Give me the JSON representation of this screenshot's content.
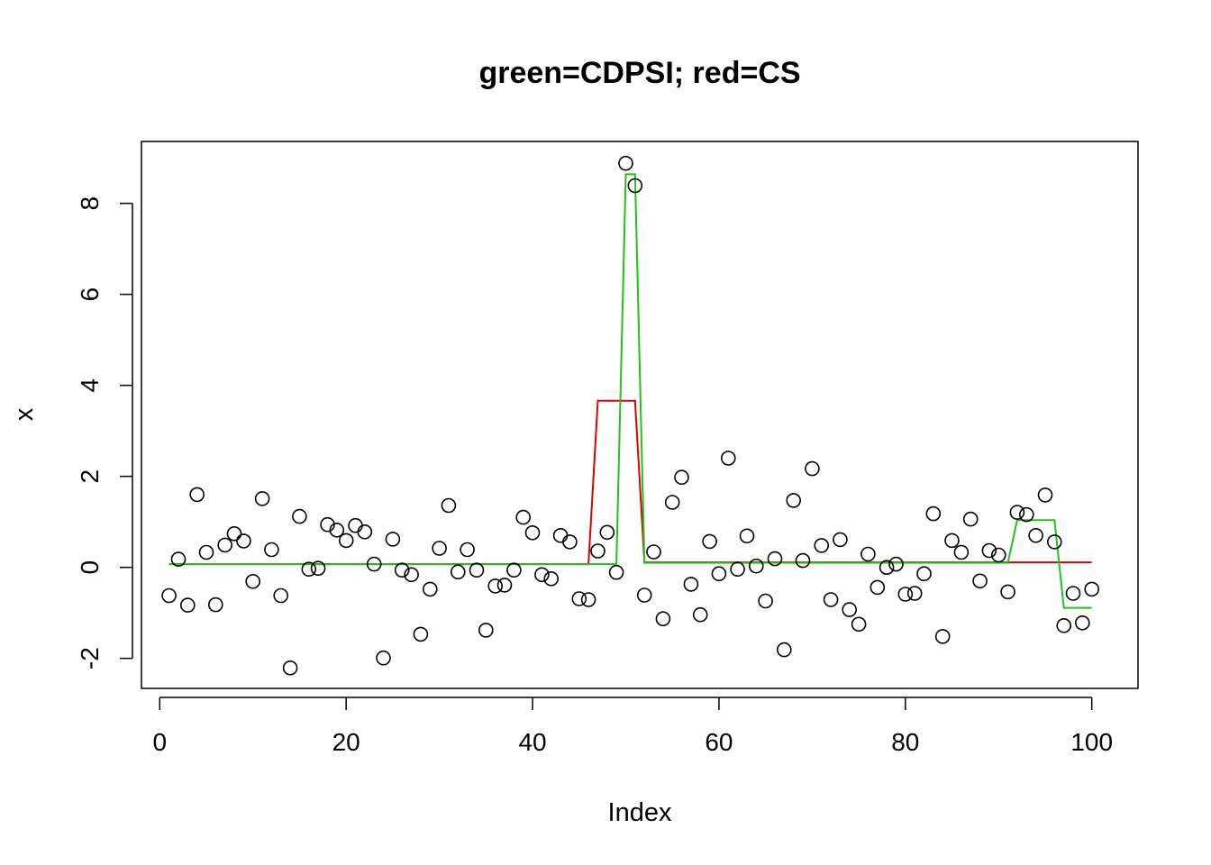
{
  "chart_data": {
    "type": "scatter",
    "title": "green=CDPSI; red=CS",
    "xlabel": "Index",
    "ylabel": "x",
    "xlim": [
      -1.96,
      104.96
    ],
    "ylim": [
      -2.66,
      9.36
    ],
    "xticks": [
      0,
      20,
      40,
      60,
      80,
      100
    ],
    "yticks": [
      -2,
      0,
      2,
      4,
      6,
      8
    ],
    "grid": false,
    "legend": "none",
    "points": {
      "x": [
        1,
        2,
        3,
        4,
        5,
        6,
        7,
        8,
        9,
        10,
        11,
        12,
        13,
        14,
        15,
        16,
        17,
        18,
        19,
        20,
        21,
        22,
        23,
        24,
        25,
        26,
        27,
        28,
        29,
        30,
        31,
        32,
        33,
        34,
        35,
        36,
        37,
        38,
        39,
        40,
        41,
        42,
        43,
        44,
        45,
        46,
        47,
        48,
        49,
        50,
        51,
        52,
        53,
        54,
        55,
        56,
        57,
        58,
        59,
        60,
        61,
        62,
        63,
        64,
        65,
        66,
        67,
        68,
        69,
        70,
        71,
        72,
        73,
        74,
        75,
        76,
        77,
        78,
        79,
        80,
        81,
        82,
        83,
        84,
        85,
        86,
        87,
        88,
        89,
        90,
        91,
        92,
        93,
        94,
        95,
        96,
        97,
        98,
        99,
        100
      ],
      "y": [
        -0.62,
        0.18,
        -0.83,
        1.6,
        0.33,
        -0.82,
        0.49,
        0.74,
        0.58,
        -0.31,
        1.51,
        0.39,
        -0.62,
        -2.21,
        1.12,
        -0.04,
        -0.02,
        0.94,
        0.82,
        0.59,
        0.92,
        0.78,
        0.07,
        -1.99,
        0.62,
        -0.06,
        -0.16,
        -1.47,
        -0.48,
        0.42,
        1.36,
        -0.1,
        0.39,
        -0.06,
        -1.38,
        -0.41,
        -0.39,
        -0.06,
        1.1,
        0.76,
        -0.16,
        -0.25,
        0.7,
        0.56,
        -0.69,
        -0.71,
        0.36,
        0.77,
        -0.11,
        8.88,
        8.39,
        -0.61,
        0.34,
        -1.13,
        1.43,
        1.98,
        -0.37,
        -1.04,
        0.57,
        -0.14,
        2.4,
        -0.04,
        0.69,
        0.03,
        -0.74,
        0.19,
        -1.81,
        1.47,
        0.15,
        2.17,
        0.48,
        -0.71,
        0.61,
        -0.93,
        -1.25,
        0.29,
        -0.44,
        0.0,
        0.07,
        -0.59,
        -0.57,
        -0.14,
        1.18,
        -1.52,
        0.59,
        0.33,
        1.06,
        -0.3,
        0.37,
        0.27,
        -0.54,
        1.21,
        1.16,
        0.7,
        1.59,
        0.56,
        -1.28,
        -0.57,
        -1.22,
        -0.48
      ]
    },
    "series": [
      {
        "color": "#df0000",
        "x": [
          1,
          46,
          47,
          51,
          52,
          100
        ],
        "y": [
          0.07,
          0.07,
          3.66,
          3.66,
          0.11,
          0.11
        ]
      },
      {
        "color": "#22c11d",
        "x": [
          1,
          49,
          50,
          51,
          52,
          91,
          92,
          96,
          97,
          100
        ],
        "y": [
          0.07,
          0.07,
          8.64,
          8.64,
          0.1,
          0.1,
          1.04,
          1.04,
          -0.89,
          -0.89
        ]
      }
    ]
  }
}
